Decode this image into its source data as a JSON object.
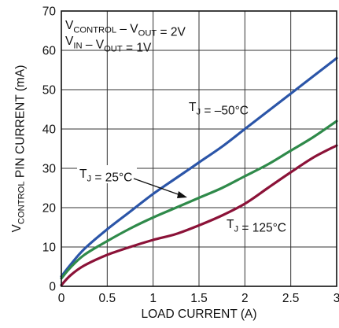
{
  "chart_data": {
    "type": "line",
    "xlabel": "LOAD CURRENT (A)",
    "ylabel_parts": [
      {
        "text": "V",
        "sub": false
      },
      {
        "text": "CONTROL",
        "sub": true
      },
      {
        "text": " PIN CURRENT (mA)",
        "sub": false
      }
    ],
    "xlim": [
      0,
      3
    ],
    "ylim": [
      0,
      70
    ],
    "x_ticks": [
      0,
      0.5,
      1,
      1.5,
      2,
      2.5,
      3
    ],
    "x_tick_labels": [
      "0",
      "0.5",
      "1",
      "1.5",
      "2",
      "2.5",
      "3"
    ],
    "y_ticks": [
      0,
      10,
      20,
      30,
      40,
      50,
      60,
      70
    ],
    "y_tick_labels": [
      "0",
      "10",
      "20",
      "30",
      "40",
      "50",
      "60",
      "70"
    ],
    "grid": true,
    "conditions": [
      [
        {
          "text": "V",
          "sub": false
        },
        {
          "text": "CONTROL",
          "sub": true
        },
        {
          "text": " – V",
          "sub": false
        },
        {
          "text": "OUT",
          "sub": true
        },
        {
          "text": " = 2V",
          "sub": false
        }
      ],
      [
        {
          "text": "V",
          "sub": false
        },
        {
          "text": "IN",
          "sub": true
        },
        {
          "text": " – V",
          "sub": false
        },
        {
          "text": "OUT",
          "sub": true
        },
        {
          "text": " = 1V",
          "sub": false
        }
      ]
    ],
    "series": [
      {
        "label_parts": [
          {
            "text": "T",
            "sub": false
          },
          {
            "text": "J",
            "sub": true
          },
          {
            "text": " = –50°C",
            "sub": false
          }
        ],
        "color": "#2b55a8",
        "x": [
          0,
          0.1,
          0.25,
          0.5,
          0.75,
          1,
          1.25,
          1.5,
          1.75,
          2,
          2.25,
          2.5,
          2.75,
          3
        ],
        "y": [
          2.5,
          5.5,
          9.5,
          14.5,
          19,
          23.5,
          27.5,
          31.5,
          35.5,
          40,
          44.5,
          49,
          53.5,
          58
        ]
      },
      {
        "label_parts": [
          {
            "text": "T",
            "sub": false
          },
          {
            "text": "J",
            "sub": true
          },
          {
            "text": " = 25°C",
            "sub": false
          }
        ],
        "color": "#2f8a4a",
        "x": [
          0,
          0.1,
          0.25,
          0.5,
          0.75,
          1,
          1.25,
          1.5,
          1.75,
          2,
          2.25,
          2.5,
          2.75,
          3
        ],
        "y": [
          2,
          4.8,
          8,
          11.5,
          14.7,
          17.5,
          20,
          22.5,
          25,
          28,
          31,
          34.5,
          38,
          42
        ]
      },
      {
        "label_parts": [
          {
            "text": "T",
            "sub": false
          },
          {
            "text": "J",
            "sub": true
          },
          {
            "text": " = 125°C",
            "sub": false
          }
        ],
        "color": "#8b1238",
        "x": [
          0,
          0.1,
          0.25,
          0.5,
          0.75,
          1,
          1.25,
          1.5,
          1.75,
          2,
          2.25,
          2.5,
          2.75,
          3
        ],
        "y": [
          0.3,
          2.8,
          5.3,
          8,
          10,
          11.8,
          13.3,
          15.5,
          18,
          21,
          25,
          29,
          32.8,
          35.8
        ]
      }
    ]
  }
}
